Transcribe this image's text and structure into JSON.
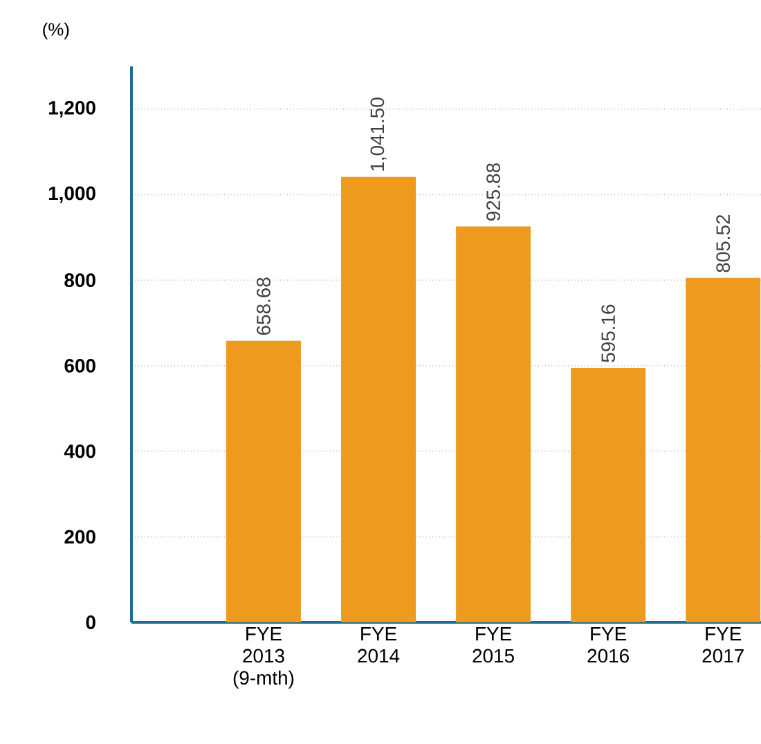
{
  "chart_data": {
    "type": "bar",
    "ylabel": "(%)",
    "categories": [
      "FYE 2013 (9-mth)",
      "FYE 2014",
      "FYE 2015",
      "FYE 2016",
      "FYE 2017"
    ],
    "values": [
      658.68,
      1041.5,
      925.88,
      595.16,
      805.52
    ],
    "value_labels": [
      "658.68",
      "1,041.50",
      "925.88",
      "595.16",
      "805.52"
    ],
    "color": "#ed9a1e",
    "ylim": [
      0,
      1300
    ],
    "yticks": [
      0,
      {
        "value": 200,
        "label": "200"
      },
      {
        "value": 400,
        "label": "400"
      },
      {
        "value": 600,
        "label": "600"
      },
      {
        "value": 800,
        "label": "800"
      },
      {
        "value": 1000,
        "label": "1,000"
      },
      {
        "value": 1200,
        "label": "1,200"
      }
    ],
    "grid": "y"
  }
}
